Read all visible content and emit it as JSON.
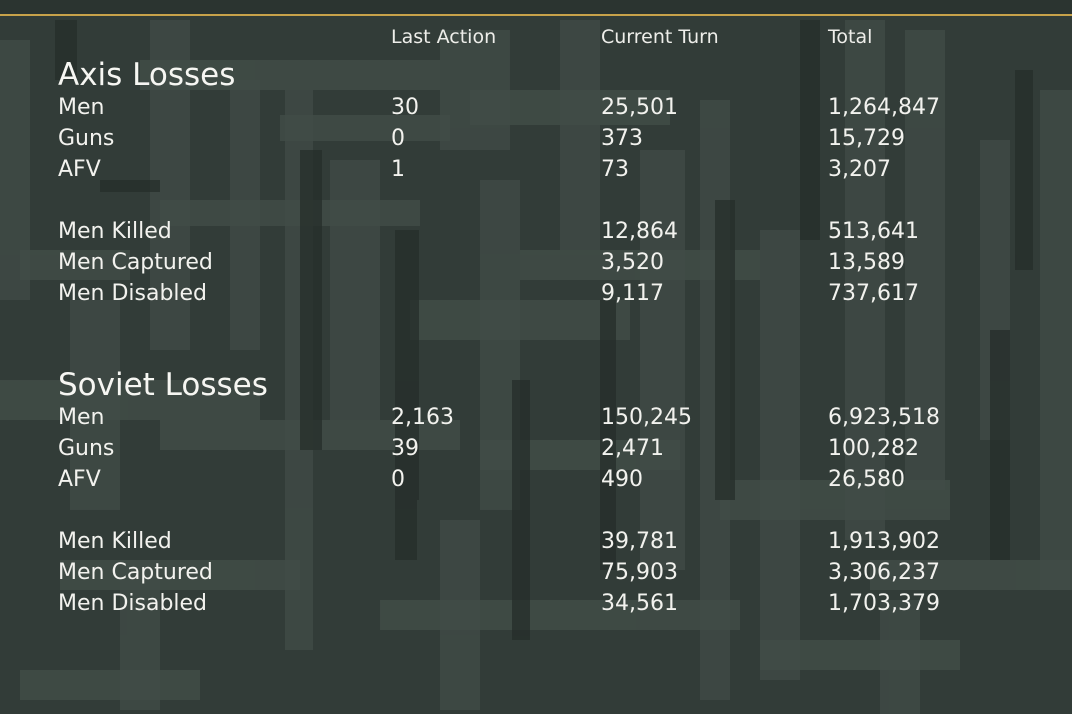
{
  "columns": {
    "last_action": "Last Action",
    "current_turn": "Current Turn",
    "total": "Total"
  },
  "axis": {
    "title": "Axis Losses",
    "rows": [
      {
        "label": "Men",
        "last": "30",
        "turn": "25,501",
        "total": "1,264,847"
      },
      {
        "label": "Guns",
        "last": "0",
        "turn": "373",
        "total": "15,729"
      },
      {
        "label": "AFV",
        "last": "1",
        "turn": "73",
        "total": "3,207"
      },
      {
        "label": "Men Killed",
        "last": "",
        "turn": "12,864",
        "total": "513,641"
      },
      {
        "label": "Men Captured",
        "last": "",
        "turn": "3,520",
        "total": "13,589"
      },
      {
        "label": "Men Disabled",
        "last": "",
        "turn": "9,117",
        "total": "737,617"
      }
    ]
  },
  "soviet": {
    "title": "Soviet Losses",
    "rows": [
      {
        "label": "Men",
        "last": "2,163",
        "turn": "150,245",
        "total": "6,923,518"
      },
      {
        "label": "Guns",
        "last": "39",
        "turn": "2,471",
        "total": "100,282"
      },
      {
        "label": "AFV",
        "last": "0",
        "turn": "490",
        "total": "26,580"
      },
      {
        "label": "Men Killed",
        "last": "",
        "turn": "39,781",
        "total": "1,913,902"
      },
      {
        "label": "Men Captured",
        "last": "",
        "turn": "75,903",
        "total": "3,306,237"
      },
      {
        "label": "Men Disabled",
        "last": "",
        "turn": "34,561",
        "total": "1,703,379"
      }
    ]
  },
  "colors": {
    "background": "#323c38",
    "accent_border": "#c7a24a",
    "text": "#f2f2ee"
  }
}
